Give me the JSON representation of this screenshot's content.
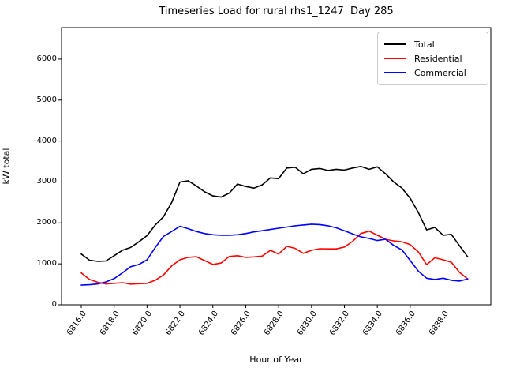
{
  "chart_data": {
    "type": "line",
    "title": "Timeseries Load for rural rhs1_1247  Day 285",
    "xlabel": "Hour of Year",
    "ylabel": "kW total",
    "xlim": [
      6814.8,
      6840.9
    ],
    "ylim": [
      0,
      6770
    ],
    "grid": false,
    "legend_position": "upper right",
    "x_tick_values": [
      6816,
      6818,
      6820,
      6822,
      6824,
      6826,
      6828,
      6830,
      6832,
      6834,
      6836,
      6838
    ],
    "x_tick_labels": [
      "6816.0",
      "6818.0",
      "6820.0",
      "6822.0",
      "6824.0",
      "6826.0",
      "6828.0",
      "6830.0",
      "6832.0",
      "6834.0",
      "6836.0",
      "6838.0"
    ],
    "y_tick_values": [
      0,
      1000,
      2000,
      3000,
      4000,
      5000,
      6000
    ],
    "y_tick_labels": [
      "0",
      "1000",
      "2000",
      "3000",
      "4000",
      "5000",
      "6000"
    ],
    "x": [
      6816.0,
      6816.5,
      6817.0,
      6817.5,
      6818.0,
      6818.5,
      6819.0,
      6819.5,
      6820.0,
      6820.5,
      6821.0,
      6821.5,
      6822.0,
      6822.5,
      6823.0,
      6823.5,
      6824.0,
      6824.5,
      6825.0,
      6825.5,
      6826.0,
      6826.5,
      6827.0,
      6827.5,
      6828.0,
      6828.5,
      6829.0,
      6829.5,
      6830.0,
      6830.5,
      6831.0,
      6831.5,
      6832.0,
      6832.5,
      6833.0,
      6833.5,
      6834.0,
      6834.5,
      6835.0,
      6835.5,
      6836.0,
      6836.5,
      6837.0,
      6837.5,
      6838.0,
      6838.5,
      6839.0,
      6839.5
    ],
    "series": [
      {
        "name": "Total",
        "color": "#000000",
        "values": [
          1240,
          1090,
          1060,
          1070,
          1200,
          1330,
          1400,
          1540,
          1690,
          1950,
          2150,
          2500,
          3000,
          3030,
          2900,
          2760,
          2660,
          2630,
          2730,
          2950,
          2890,
          2850,
          2930,
          3100,
          3080,
          3340,
          3360,
          3200,
          3310,
          3330,
          3280,
          3310,
          3290,
          3340,
          3380,
          3310,
          3370,
          3200,
          3000,
          2850,
          2600,
          2250,
          1830,
          1890,
          1700,
          1720,
          1440,
          1170
        ]
      },
      {
        "name": "Residential",
        "color": "#ff0000",
        "values": [
          780,
          620,
          550,
          510,
          525,
          540,
          505,
          515,
          525,
          600,
          730,
          950,
          1100,
          1160,
          1175,
          1080,
          985,
          1020,
          1180,
          1200,
          1160,
          1170,
          1190,
          1330,
          1240,
          1430,
          1380,
          1260,
          1330,
          1370,
          1365,
          1365,
          1410,
          1550,
          1740,
          1800,
          1700,
          1600,
          1560,
          1540,
          1470,
          1290,
          980,
          1150,
          1100,
          1040,
          790,
          630
        ]
      },
      {
        "name": "Commercial",
        "color": "#0000ff",
        "values": [
          480,
          490,
          510,
          560,
          640,
          780,
          930,
          985,
          1100,
          1400,
          1670,
          1790,
          1920,
          1860,
          1790,
          1740,
          1710,
          1700,
          1700,
          1710,
          1740,
          1780,
          1810,
          1840,
          1870,
          1900,
          1930,
          1950,
          1970,
          1960,
          1930,
          1880,
          1810,
          1730,
          1660,
          1620,
          1570,
          1600,
          1450,
          1340,
          1080,
          820,
          650,
          620,
          650,
          600,
          580,
          630
        ]
      }
    ]
  }
}
